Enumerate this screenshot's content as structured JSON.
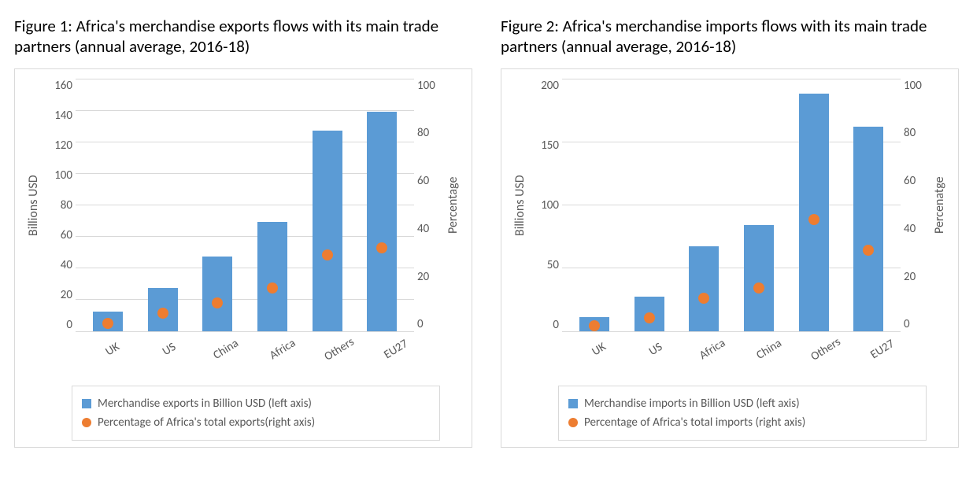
{
  "background_color": "#ffffff",
  "grid_color": "#d9d9d9",
  "text_color": "#595959",
  "bar_color": "#5b9bd5",
  "marker_color": "#ed7d31",
  "title_fontsize": 21,
  "panels": {
    "left": {
      "title": "Figure 1: Africa's merchandise exports flows with its main trade partners (annual average, 2016-18)",
      "type": "dual-axis-bar-scatter",
      "y_left": {
        "label": "Billions USD",
        "min": 0,
        "max": 160,
        "step": 20
      },
      "y_right": {
        "label": "Percentage",
        "min": 0,
        "max": 100,
        "step": 20
      },
      "categories": [
        "UK",
        "US",
        "China",
        "Africa",
        "Others",
        "EU27"
      ],
      "bar_values": [
        12,
        27,
        47,
        69,
        127,
        139
      ],
      "marker_values": [
        3,
        7,
        11,
        17,
        30,
        33
      ],
      "legend": {
        "bar": "Merchandise exports  in Billion USD (left axis)",
        "marker": "Percentage of Africa's total exports(right axis)"
      }
    },
    "right": {
      "title": "Figure 2: Africa's merchandise imports flows with its main trade partners (annual average, 2016-18)",
      "type": "dual-axis-bar-scatter",
      "y_left": {
        "label": "Billions  USD",
        "min": 0,
        "max": 200,
        "step": 50
      },
      "y_right": {
        "label": "Percenatge",
        "min": 0,
        "max": 100,
        "step": 20
      },
      "categories": [
        "UK",
        "US",
        "Africa",
        "China",
        "Others",
        "EU27"
      ],
      "bar_values": [
        11,
        27,
        67,
        84,
        188,
        162
      ],
      "marker_values": [
        2,
        5,
        13,
        17,
        44,
        32
      ],
      "legend": {
        "bar": "Merchandise imports in Billion USD (left axis)",
        "marker": "Percentage of Africa's total  imports (right axis)"
      }
    }
  }
}
